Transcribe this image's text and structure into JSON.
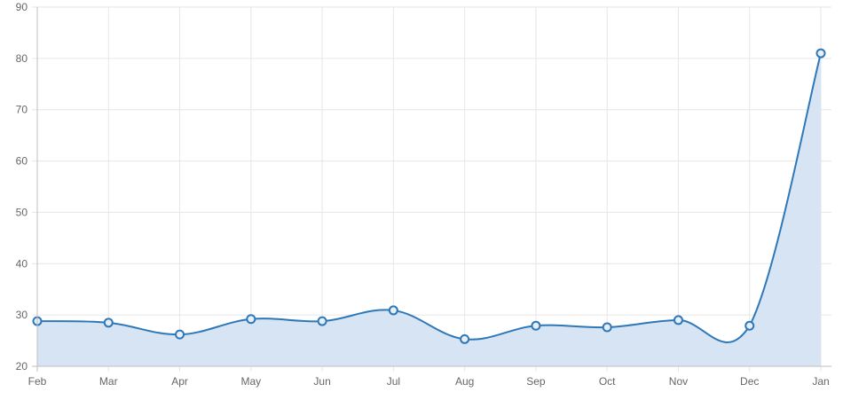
{
  "chart_data": {
    "type": "area",
    "categories": [
      "Feb",
      "Mar",
      "Apr",
      "May",
      "Jun",
      "Jul",
      "Aug",
      "Sep",
      "Oct",
      "Nov",
      "Dec",
      "Jan"
    ],
    "series": [
      {
        "values": [
          28.8,
          28.5,
          26.2,
          29.2,
          28.8,
          30.9,
          25.3,
          27.9,
          27.6,
          29.0,
          27.9,
          81.0
        ],
        "line_color": "#2f78b8",
        "fill_color": "#d6e4f3"
      }
    ],
    "y_ticks": [
      20,
      30,
      40,
      50,
      60,
      70,
      80,
      90
    ],
    "ylim": [
      20,
      90
    ],
    "grid": true,
    "legend": "none",
    "title": "",
    "xlabel": "",
    "ylabel": ""
  }
}
